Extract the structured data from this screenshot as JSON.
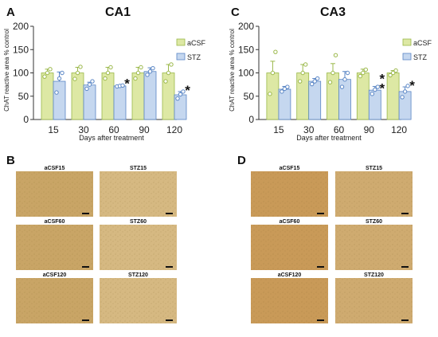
{
  "figure": {
    "colors": {
      "acsf": "#dde8a4",
      "acsf_edge": "#9bb84a",
      "stz": "#c5d7ef",
      "stz_edge": "#5a86c5",
      "axis": "#333333"
    },
    "micro_panels": [
      {
        "letter": "B",
        "rows": [
          [
            "aCSF15",
            "STZ15"
          ],
          [
            "aCSF60",
            "STZ60"
          ],
          [
            "aCSF120",
            "STZ120"
          ]
        ]
      },
      {
        "letter": "D",
        "rows": [
          [
            "aCSF15",
            "STZ15"
          ],
          [
            "aCSF60",
            "STZ60"
          ],
          [
            "aCSF120",
            "STZ120"
          ]
        ]
      }
    ]
  },
  "chart_data": [
    {
      "type": "bar",
      "letter": "A",
      "title": "CA1",
      "xlabel": "Days after treatment",
      "ylabel": "ChAT reactive area % control",
      "ylim": [
        0,
        200
      ],
      "yticks": [
        0,
        50,
        100,
        150,
        200
      ],
      "categories": [
        "15",
        "30",
        "60",
        "90",
        "120"
      ],
      "legend_position": "right",
      "series": [
        {
          "name": "aCSF",
          "values": [
            100,
            100,
            100,
            100,
            100
          ],
          "errors": [
            8,
            12,
            12,
            12,
            18
          ],
          "points": [
            [
              92,
              100,
              108
            ],
            [
              87,
              100,
              113
            ],
            [
              88,
              100,
              112
            ],
            [
              88,
              100,
              112
            ],
            [
              82,
              100,
              118
            ]
          ]
        },
        {
          "name": "STZ",
          "values": [
            82,
            74,
            72,
            103,
            53
          ],
          "errors": [
            20,
            6,
            2,
            8,
            7
          ],
          "points": [
            [
              58,
              88,
              100
            ],
            [
              66,
              75,
              82
            ],
            [
              71,
              72,
              73
            ],
            [
              96,
              103,
              110
            ],
            [
              45,
              54,
              60
            ]
          ]
        }
      ],
      "annotations": [
        "",
        "",
        "*",
        "",
        "*"
      ]
    },
    {
      "type": "bar",
      "letter": "C",
      "title": "CA3",
      "xlabel": "Days after treatment",
      "ylabel": "ChAT reactive area % control",
      "ylim": [
        0,
        200
      ],
      "yticks": [
        0,
        50,
        100,
        150,
        200
      ],
      "categories": [
        "15",
        "30",
        "60",
        "90",
        "120"
      ],
      "legend_position": "right",
      "series": [
        {
          "name": "aCSF",
          "values": [
            100,
            100,
            100,
            100,
            100
          ],
          "errors": [
            25,
            18,
            20,
            8,
            5
          ],
          "points": [
            [
              55,
              100,
              145
            ],
            [
              82,
              100,
              118
            ],
            [
              80,
              100,
              138
            ],
            [
              93,
              100,
              107
            ],
            [
              95,
              100,
              105
            ]
          ]
        },
        {
          "name": "STZ",
          "values": [
            65,
            82,
            86,
            63,
            60
          ],
          "errors": [
            6,
            6,
            17,
            8,
            10
          ],
          "points": [
            [
              60,
              66,
              70
            ],
            [
              76,
              82,
              88
            ],
            [
              70,
              86,
              100
            ],
            [
              55,
              64,
              70
            ],
            [
              48,
              60,
              72
            ]
          ]
        }
      ],
      "annotations": [
        "",
        "",
        "",
        "**",
        "*"
      ]
    }
  ]
}
